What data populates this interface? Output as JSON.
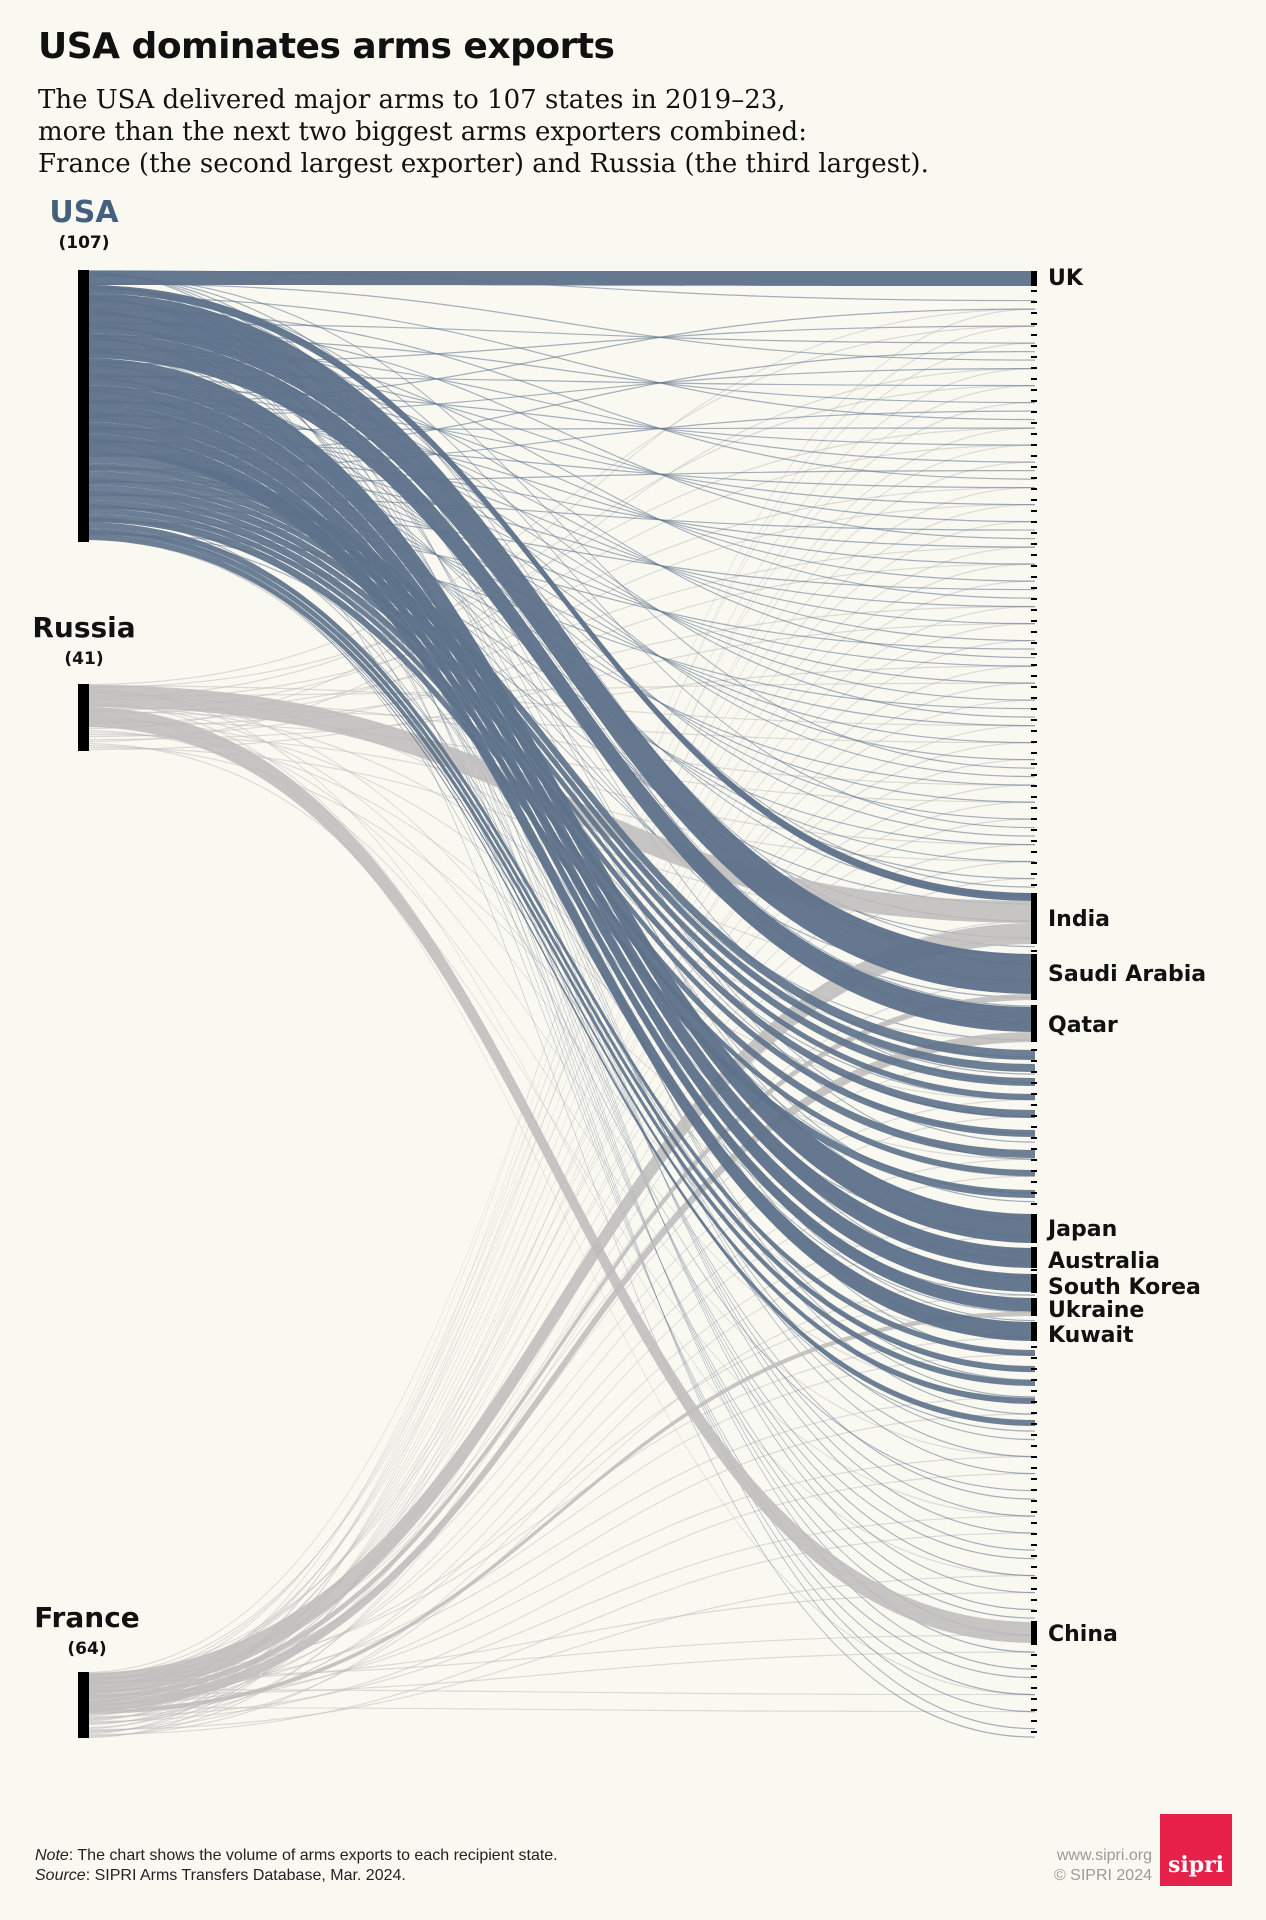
{
  "title": "USA dominates arms exports",
  "subtitle": [
    "The USA delivered major arms to 107 states in 2019–23,",
    "more than the next two biggest arms exporters combined:",
    "France (the second largest exporter) and Russia (the third largest)."
  ],
  "footer": {
    "note_label": "Note",
    "note_text": ": The chart shows the volume of arms exports to each recipient state.",
    "source_label": "Source",
    "source_text": ": SIPRI Arms Transfers Database, Mar. 2024."
  },
  "credit": {
    "url": "www.sipri.org",
    "copyright": "© SIPRI 2024"
  },
  "logo_text": "sipri",
  "colors": {
    "usa": "#5d718a",
    "other": "#bdbcbc",
    "bar": "#000000",
    "background": "#f9f8f1",
    "usa_label": "#44607e",
    "logo": "#e8214a"
  },
  "chart_data": {
    "type": "sankey",
    "exporters": [
      {
        "name": "USA",
        "count_label": "(107)",
        "recipients_count": 107
      },
      {
        "name": "Russia",
        "count_label": "(41)",
        "recipients_count": 41
      },
      {
        "name": "France",
        "count_label": "(64)",
        "recipients_count": 64
      }
    ],
    "labeled_recipients": [
      "UK",
      "India",
      "Saudi Arabia",
      "Qatar",
      "Japan",
      "Australia",
      "South Korea",
      "Ukraine",
      "Kuwait",
      "China"
    ]
  }
}
